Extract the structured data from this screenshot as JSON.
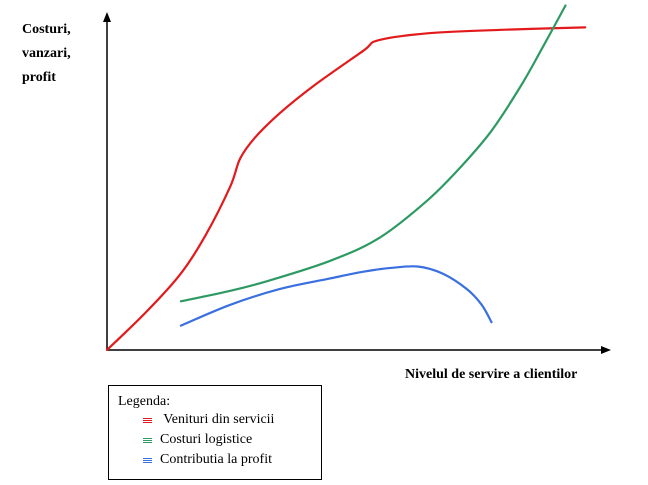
{
  "chart_data": {
    "type": "line",
    "ylabel_lines": [
      "Costuri,",
      "vanzari,",
      "profit"
    ],
    "xlabel": "Nivelul de servire a clientilor",
    "legend": {
      "title": "Legenda:",
      "placement": "bottom-left",
      "entries": [
        {
          "label": " Venituri din servicii",
          "color": "#e31a1c"
        },
        {
          "label": "Costuri logistice",
          "color": "#2e9a63"
        },
        {
          "label": "Contributia la profit",
          "color": "#3a6fe0"
        }
      ]
    },
    "xlim": [
      0,
      100
    ],
    "ylim": [
      0,
      100
    ],
    "grid": false,
    "series": [
      {
        "color": "#e31a1c",
        "x": [
          0,
          8,
          15,
          20,
          25,
          27,
          30,
          35,
          42,
          52,
          55,
          65,
          80,
          97
        ],
        "y": [
          0,
          11,
          22,
          33,
          47,
          55,
          61,
          68,
          76,
          86,
          89,
          91,
          92,
          92.7
        ]
      },
      {
        "color": "#2e9a63",
        "x": [
          15,
          25,
          33,
          45,
          55,
          65,
          72,
          78,
          84,
          88,
          93
        ],
        "y": [
          14,
          17,
          20,
          25.5,
          32,
          43,
          53,
          63,
          76,
          86,
          99
        ]
      },
      {
        "color": "#3a6fe0",
        "x": [
          15,
          25,
          35,
          45,
          52,
          57,
          63,
          68,
          73,
          76,
          78
        ],
        "y": [
          7,
          13,
          17.5,
          20.5,
          22.5,
          23.5,
          24,
          22,
          17.5,
          13,
          8
        ]
      }
    ]
  }
}
